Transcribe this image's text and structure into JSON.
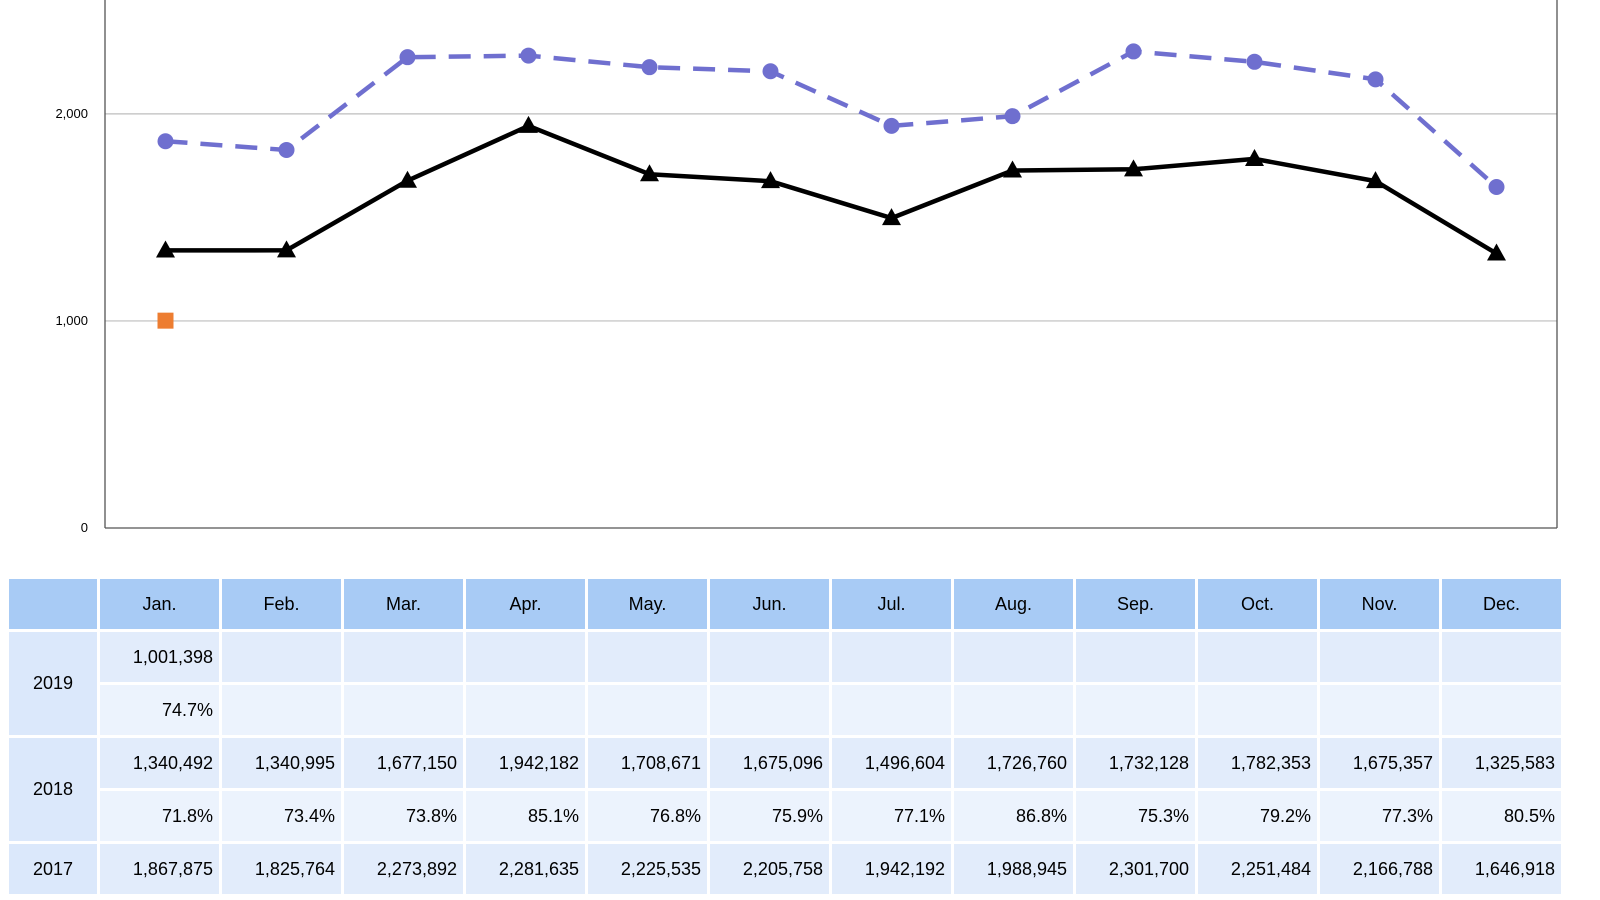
{
  "chart_data": {
    "type": "line",
    "categories": [
      "Jan.",
      "Feb.",
      "Mar.",
      "Apr.",
      "May.",
      "Jun.",
      "Jul.",
      "Aug.",
      "Sep.",
      "Oct.",
      "Nov.",
      "Dec."
    ],
    "y_ticks": [
      {
        "value": 0,
        "label": "0"
      },
      {
        "value": 1000000,
        "label": "1,000"
      },
      {
        "value": 2000000,
        "label": "2,000"
      }
    ],
    "ylim": [
      0,
      2550000
    ],
    "grid": true,
    "series": [
      {
        "name": "2019",
        "color": "#ed7d31",
        "marker": "square",
        "line": "none",
        "values": [
          1001398,
          null,
          null,
          null,
          null,
          null,
          null,
          null,
          null,
          null,
          null,
          null
        ]
      },
      {
        "name": "2018",
        "color": "#000000",
        "marker": "triangle",
        "line": "solid",
        "values": [
          1340492,
          1340995,
          1677150,
          1942182,
          1708671,
          1675096,
          1496604,
          1726760,
          1732128,
          1782353,
          1675357,
          1325583
        ]
      },
      {
        "name": "2017",
        "color": "#6f6fcf",
        "marker": "circle",
        "line": "dashed",
        "values": [
          1867875,
          1825764,
          2273892,
          2281635,
          2225535,
          2205758,
          1942192,
          1988945,
          2301700,
          2251484,
          2166788,
          1646918
        ]
      }
    ]
  },
  "table": {
    "months": [
      "Jan.",
      "Feb.",
      "Mar.",
      "Apr.",
      "May.",
      "Jun.",
      "Jul.",
      "Aug.",
      "Sep.",
      "Oct.",
      "Nov.",
      "Dec."
    ],
    "rows": [
      {
        "year": "2019",
        "values": [
          "1,001,398",
          "",
          "",
          "",
          "",
          "",
          "",
          "",
          "",
          "",
          "",
          ""
        ],
        "percents": [
          "74.7%",
          "",
          "",
          "",
          "",
          "",
          "",
          "",
          "",
          "",
          "",
          ""
        ]
      },
      {
        "year": "2018",
        "values": [
          "1,340,492",
          "1,340,995",
          "1,677,150",
          "1,942,182",
          "1,708,671",
          "1,675,096",
          "1,496,604",
          "1,726,760",
          "1,732,128",
          "1,782,353",
          "1,675,357",
          "1,325,583"
        ],
        "percents": [
          "71.8%",
          "73.4%",
          "73.8%",
          "85.1%",
          "76.8%",
          "75.9%",
          "77.1%",
          "86.8%",
          "75.3%",
          "79.2%",
          "77.3%",
          "80.5%"
        ]
      },
      {
        "year": "2017",
        "values": [
          "1,867,875",
          "1,825,764",
          "2,273,892",
          "2,281,635",
          "2,225,535",
          "2,205,758",
          "1,942,192",
          "1,988,945",
          "2,301,700",
          "2,251,484",
          "2,166,788",
          "1,646,918"
        ],
        "percents": null
      }
    ]
  }
}
